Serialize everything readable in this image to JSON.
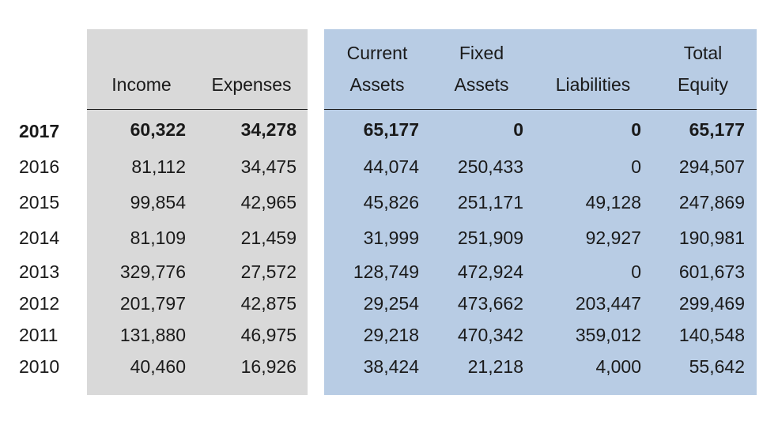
{
  "columns": [
    {
      "line1": "",
      "line2": "Income"
    },
    {
      "line1": "",
      "line2": "Expenses"
    },
    {
      "line1": "Current",
      "line2": "Assets"
    },
    {
      "line1": "Fixed",
      "line2": "Assets"
    },
    {
      "line1": "",
      "line2": "Liabilities"
    },
    {
      "line1": "Total",
      "line2": "Equity"
    }
  ],
  "rows": [
    {
      "year": "2017",
      "values": [
        "60,322",
        "34,278",
        "65,177",
        "0",
        "0",
        "65,177"
      ]
    },
    {
      "year": "2016",
      "values": [
        "81,112",
        "34,475",
        "44,074",
        "250,433",
        "0",
        "294,507"
      ]
    },
    {
      "year": "2015",
      "values": [
        "99,854",
        "42,965",
        "45,826",
        "251,171",
        "49,128",
        "247,869"
      ]
    },
    {
      "year": "2014",
      "values": [
        "81,109",
        "21,459",
        "31,999",
        "251,909",
        "92,927",
        "190,981"
      ]
    },
    {
      "year": "2013",
      "values": [
        "329,776",
        "27,572",
        "128,749",
        "472,924",
        "0",
        "601,673"
      ]
    },
    {
      "year": "2012",
      "values": [
        "201,797",
        "42,875",
        "29,254",
        "473,662",
        "203,447",
        "299,469"
      ]
    },
    {
      "year": "2011",
      "values": [
        "131,880",
        "46,975",
        "29,218",
        "470,342",
        "359,012",
        "140,548"
      ]
    },
    {
      "year": "2010",
      "values": [
        "40,460",
        "16,926",
        "38,424",
        "21,218",
        "4,000",
        "55,642"
      ]
    }
  ],
  "colors": {
    "income_expense_panel": "#d9d9d9",
    "balance_panel": "#b8cce4",
    "text": "#1a1a1a"
  }
}
